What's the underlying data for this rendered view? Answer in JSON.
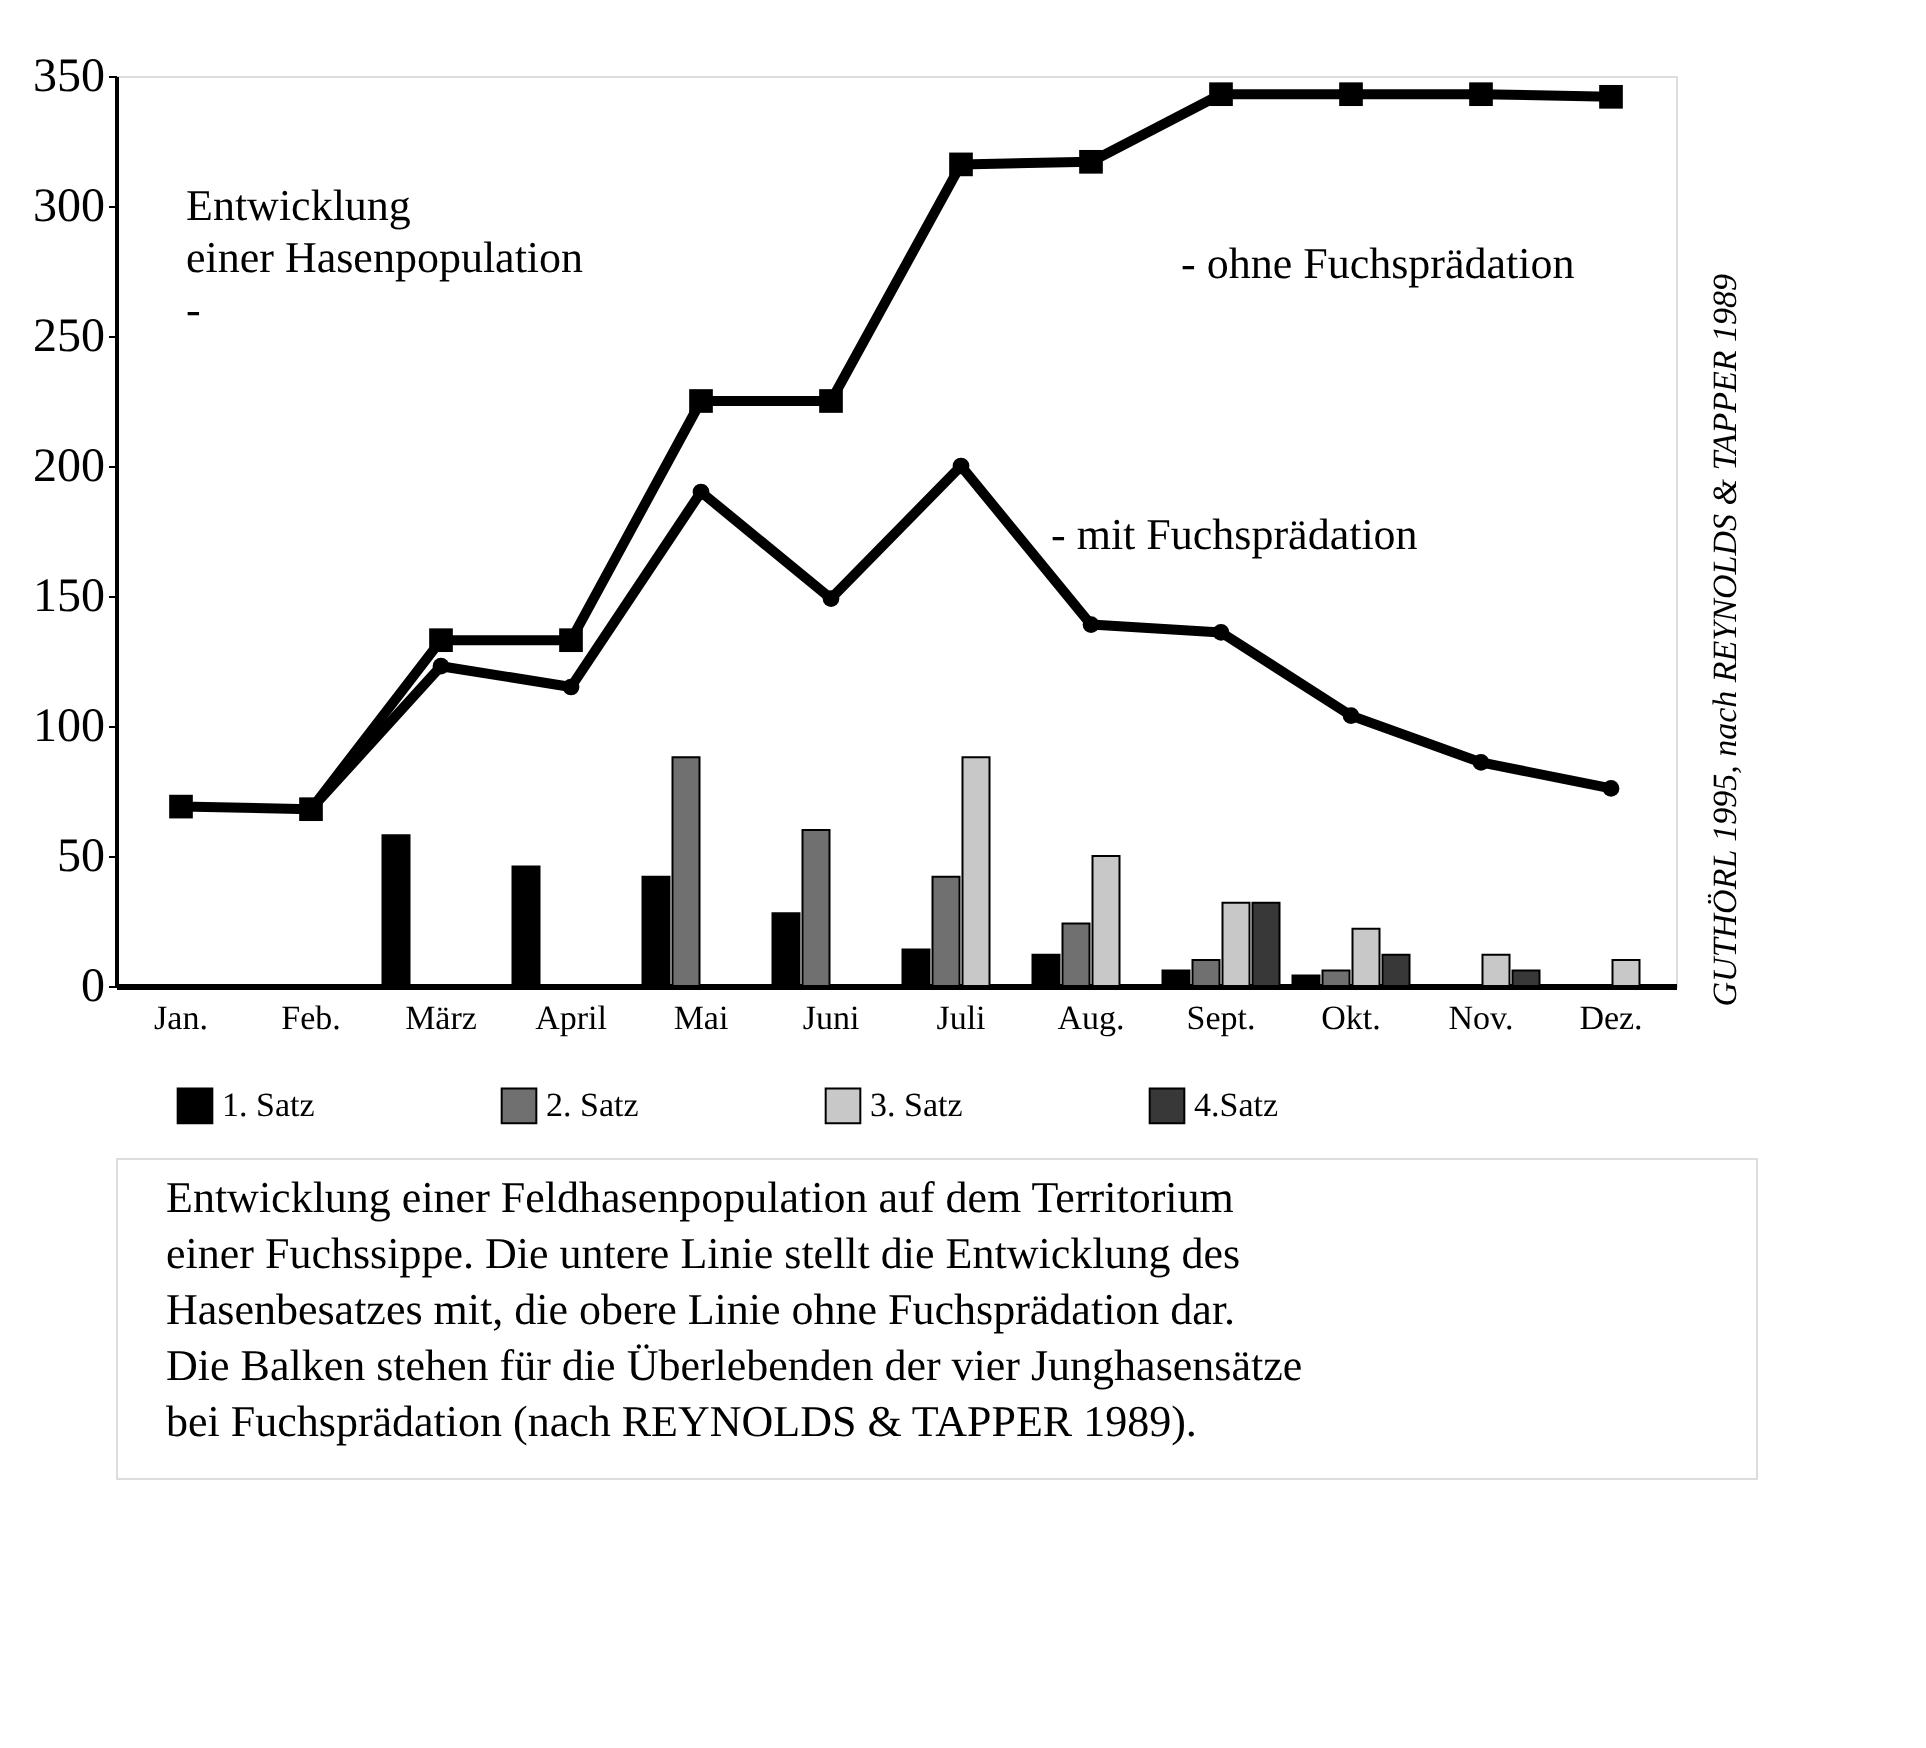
{
  "chart_data": {
    "type": "bar",
    "categories": [
      "Jan.",
      "Feb.",
      "März",
      "April",
      "Mai",
      "Juni",
      "Juli",
      "Aug.",
      "Sept.",
      "Okt.",
      "Nov.",
      "Dez."
    ],
    "series": [
      {
        "name": "1. Satz",
        "color": "#000000",
        "values": [
          null,
          null,
          58,
          46,
          42,
          28,
          14,
          12,
          6,
          4,
          null,
          null
        ]
      },
      {
        "name": "2. Satz",
        "color": "#707070",
        "values": [
          null,
          null,
          null,
          null,
          88,
          60,
          42,
          24,
          10,
          6,
          null,
          null
        ]
      },
      {
        "name": "3. Satz",
        "color": "#c8c8c8",
        "values": [
          null,
          null,
          null,
          null,
          null,
          null,
          88,
          50,
          32,
          22,
          12,
          10
        ]
      },
      {
        "name": "4.Satz",
        "color": "#383838",
        "values": [
          null,
          null,
          null,
          null,
          null,
          null,
          null,
          null,
          32,
          12,
          6,
          null
        ]
      },
      {
        "name": "- ohne Fuchsprädation",
        "type": "line",
        "color": "#000000",
        "marker": "square",
        "values": [
          69,
          68,
          133,
          133,
          225,
          225,
          316,
          317,
          343,
          343,
          343,
          342
        ]
      },
      {
        "name": "- mit Fuchsprädation",
        "type": "line",
        "color": "#000000",
        "marker": "circle",
        "values": [
          null,
          68,
          123,
          115,
          190,
          149,
          200,
          139,
          136,
          104,
          86,
          76
        ]
      }
    ],
    "ylim": [
      0,
      350
    ],
    "yticks": [
      0,
      50,
      100,
      150,
      200,
      250,
      300,
      350
    ],
    "grid": false,
    "legend": "bottom",
    "line_style": "solid",
    "annotations": [
      "Entwicklung\neiner Hasenpopulation\n-",
      "GUTHÖRL 1995, nach REYNOLDS & TAPPER 1989",
      "Entwicklung einer Feldhasenpopulation auf dem Territorium einer Fuchssippe. Die untere Linie stellt die Entwicklung des Hasenbesatzes mit, die obere Linie ohne Fuchsprädation dar. Die Balken stehen für die Überlebenden der vier Junghasensätze bei Fuchsprädation (nach REYNOLDS & TAPPER 1989)."
    ]
  }
}
